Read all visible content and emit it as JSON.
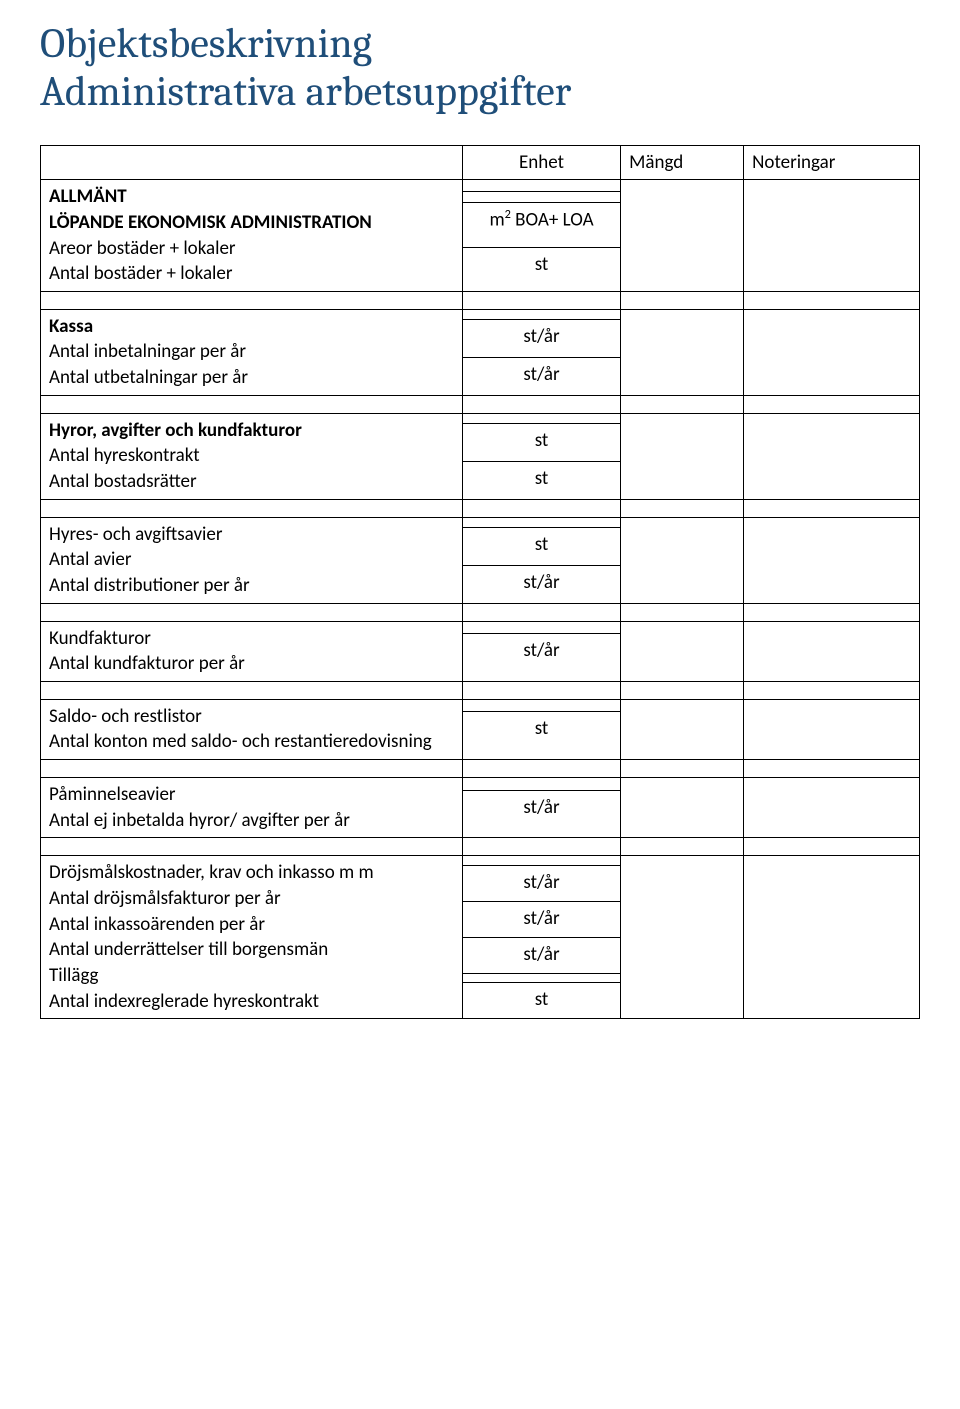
{
  "title_line1": "Objektsbeskrivning",
  "title_line2": "Administrativa arbetsuppgifter",
  "headers": {
    "enhet": "Enhet",
    "mangd": "Mängd",
    "noteringar": "Noteringar"
  },
  "sections": {
    "allmant": "ALLMÄNT",
    "lopande": "LÖPANDE EKONOMISK ADMINISTRATION",
    "areor": "Areor bostäder + lokaler",
    "areor_unit_pre": "m",
    "areor_unit_sup": "2",
    "areor_unit_post": " BOA+ LOA",
    "antal_bost": "Antal bostäder + lokaler",
    "kassa": "Kassa",
    "inbet": "Antal inbetalningar per år",
    "utbet": "Antal utbetalningar per år",
    "hyror_head": "Hyror, avgifter och kundfakturor",
    "hyreskontrakt": "Antal hyreskontrakt",
    "bostadsratter": "Antal bostadsrätter",
    "hyres_avgift": "Hyres- och avgiftsavier",
    "antal_avier": "Antal avier",
    "antal_dist": "Antal distributioner per år",
    "kundfakt_head": "Kundfakturor",
    "kundfakt": "Antal kundfakturor per år",
    "saldo_head": "Saldo- och restlistor",
    "saldo_row": "Antal konton med saldo- och restantieredovisning",
    "paminn_head": "Påminnelseavier",
    "paminn_row": "Antal ej inbetalda hyror/ avgifter per år",
    "drojsmal_head": "Dröjsmålskostnader, krav och inkasso m m",
    "drojsmal_fakt": "Antal dröjsmålsfakturor per år",
    "inkasso": "Antal inkassoärenden per år",
    "underrattelser": "Antal underrättelser till borgensmän",
    "tillagg": "Tillägg",
    "indexreg": "Antal indexreglerade hyreskontrakt"
  },
  "units": {
    "st": "st",
    "st_ar": "st/år"
  },
  "colors": {
    "title": "#1f4e79",
    "text": "#000000",
    "border": "#000000",
    "background": "#ffffff"
  },
  "typography": {
    "title_fontsize_pt": 32,
    "body_fontsize_pt": 14,
    "title_font": "Cambria",
    "body_font": "Calibri"
  }
}
